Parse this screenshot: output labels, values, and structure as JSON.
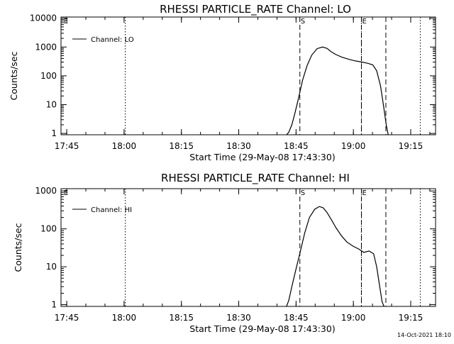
{
  "footer": {
    "timestamp": "14-Oct-2021 18:10"
  },
  "chart_data": [
    {
      "type": "line",
      "title": "RHESSI PARTICLE_RATE Channel: LO",
      "xlabel": "Start Time (29-May-08 17:43:30)",
      "ylabel": "Counts/sec",
      "y_scale": "log",
      "ylim": [
        0.9,
        11000
      ],
      "xlim": [
        0,
        98
      ],
      "x_units": "minutes after 17:43:30",
      "yticks": [
        {
          "value": 1,
          "label": "1"
        },
        {
          "value": 10,
          "label": "10"
        },
        {
          "value": 100,
          "label": "100"
        },
        {
          "value": 1000,
          "label": "1000"
        },
        {
          "value": 10000,
          "label": "10000"
        }
      ],
      "xticks": [
        {
          "value": 1.5,
          "label": "17:45"
        },
        {
          "value": 16.5,
          "label": "18:00"
        },
        {
          "value": 31.5,
          "label": "18:15"
        },
        {
          "value": 46.5,
          "label": "18:30"
        },
        {
          "value": 61.5,
          "label": "18:45"
        },
        {
          "value": 76.5,
          "label": "19:00"
        },
        {
          "value": 91.5,
          "label": "19:15"
        }
      ],
      "legend": {
        "position": "top-left",
        "entries": [
          "Channel: LO"
        ]
      },
      "markers": [
        {
          "label": "E",
          "x": 0.5,
          "style": "dotted"
        },
        {
          "label": "",
          "x": 16.8,
          "style": "dotted"
        },
        {
          "label": "S",
          "x": 62.5,
          "style": "dashed"
        },
        {
          "label": "",
          "x": 78.6,
          "style": "dashed"
        },
        {
          "label": "E",
          "x": 78.6,
          "style": "dotted"
        },
        {
          "label": "",
          "x": 85.0,
          "style": "dashed"
        },
        {
          "label": "",
          "x": 94.0,
          "style": "dotted"
        }
      ],
      "series": [
        {
          "name": "Channel: LO",
          "x": [
            59.0,
            59.6,
            60.4,
            61.2,
            62.2,
            63.2,
            64.4,
            65.6,
            67.0,
            68.4,
            69.6,
            70.6,
            71.8,
            73.4,
            75.2,
            77.0,
            78.8,
            80.4,
            81.6,
            82.6,
            83.6,
            84.4,
            85.1,
            85.6
          ],
          "y": [
            0.9,
            1.1,
            2.0,
            5.0,
            18,
            70,
            230,
            520,
            880,
            1000,
            900,
            700,
            560,
            450,
            380,
            330,
            300,
            270,
            240,
            150,
            45,
            9,
            2,
            0.9
          ]
        }
      ]
    },
    {
      "type": "line",
      "title": "RHESSI PARTICLE_RATE Channel: HI",
      "xlabel": "Start Time (29-May-08 17:43:30)",
      "ylabel": "Counts/sec",
      "y_scale": "log",
      "ylim": [
        0.9,
        1150
      ],
      "xlim": [
        0,
        98
      ],
      "x_units": "minutes after 17:43:30",
      "yticks": [
        {
          "value": 1,
          "label": "1"
        },
        {
          "value": 10,
          "label": "10"
        },
        {
          "value": 100,
          "label": "100"
        },
        {
          "value": 1000,
          "label": "1000"
        }
      ],
      "xticks": [
        {
          "value": 1.5,
          "label": "17:45"
        },
        {
          "value": 16.5,
          "label": "18:00"
        },
        {
          "value": 31.5,
          "label": "18:15"
        },
        {
          "value": 46.5,
          "label": "18:30"
        },
        {
          "value": 61.5,
          "label": "18:45"
        },
        {
          "value": 76.5,
          "label": "19:00"
        },
        {
          "value": 91.5,
          "label": "19:15"
        }
      ],
      "legend": {
        "position": "top-left",
        "entries": [
          "Channel: HI"
        ]
      },
      "markers": [
        {
          "label": "E",
          "x": 0.5,
          "style": "dotted"
        },
        {
          "label": "",
          "x": 16.8,
          "style": "dotted"
        },
        {
          "label": "S",
          "x": 62.5,
          "style": "dashed"
        },
        {
          "label": "",
          "x": 78.6,
          "style": "dashed"
        },
        {
          "label": "E",
          "x": 78.6,
          "style": "dotted"
        },
        {
          "label": "",
          "x": 85.0,
          "style": "dashed"
        },
        {
          "label": "",
          "x": 94.0,
          "style": "dotted"
        }
      ],
      "series": [
        {
          "name": "Channel: HI",
          "x": [
            59.0,
            59.6,
            60.4,
            61.4,
            62.6,
            63.8,
            65.0,
            66.4,
            67.6,
            68.6,
            69.6,
            70.8,
            72.0,
            73.4,
            74.8,
            76.4,
            78.0,
            79.2,
            80.6,
            81.8,
            82.6,
            83.4,
            84.0,
            84.5
          ],
          "y": [
            0.9,
            1.3,
            3.0,
            8.0,
            25,
            80,
            200,
            330,
            390,
            360,
            270,
            170,
            105,
            65,
            45,
            35,
            29,
            24,
            26,
            22,
            10,
            3,
            1.2,
            0.9
          ]
        }
      ]
    }
  ]
}
